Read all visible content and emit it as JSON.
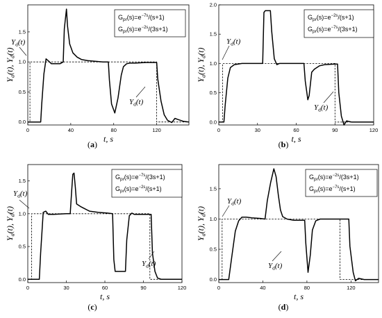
{
  "chart_data": [
    {
      "type": "line",
      "caption": "(a)",
      "xlabel": "t, s",
      "ylabel": "Ya(t), Yd(t)",
      "xlim": [
        0,
        150
      ],
      "ylim": [
        -0.05,
        1.95
      ],
      "xticks": [
        0,
        40,
        80,
        120
      ],
      "yticks": [
        0.0,
        0.5,
        1.0,
        1.5
      ],
      "grid": false,
      "legend_position": "top-right",
      "legend": [
        {
          "pre": "G",
          "sub": "pr",
          "mid": "(s)=e",
          "sup": "−7s",
          "post": "/(s+1)"
        },
        {
          "pre": "G",
          "sub": "pr",
          "mid": "(s)=e",
          "sup": "−2s",
          "post": "/(3s+1)"
        }
      ],
      "annotations": [
        {
          "text": "Y",
          "sub": "d",
          "tail": "(t)",
          "x": 2,
          "y": 1.2
        },
        {
          "text": "Y",
          "sub": "d",
          "tail": "(t)",
          "x": 106,
          "y": 0.27
        }
      ],
      "series": [
        {
          "style": "solid",
          "points": [
            [
              0,
              0
            ],
            [
              12,
              0
            ],
            [
              13,
              0.3
            ],
            [
              15,
              0.8
            ],
            [
              17,
              1.05
            ],
            [
              19,
              1.02
            ],
            [
              22,
              0.97
            ],
            [
              26,
              0.97
            ],
            [
              30,
              0.97
            ],
            [
              33,
              1.0
            ],
            [
              34,
              1.55
            ],
            [
              36,
              1.88
            ],
            [
              37,
              1.6
            ],
            [
              39,
              1.3
            ],
            [
              42,
              1.15
            ],
            [
              46,
              1.08
            ],
            [
              50,
              1.04
            ],
            [
              56,
              1.02
            ],
            [
              70,
              1.0
            ],
            [
              75,
              1.0
            ],
            [
              76,
              0.7
            ],
            [
              78,
              0.3
            ],
            [
              81,
              0.15
            ],
            [
              84,
              0.4
            ],
            [
              87,
              0.78
            ],
            [
              89,
              0.92
            ],
            [
              92,
              0.97
            ],
            [
              95,
              0.98
            ],
            [
              100,
              0.98
            ],
            [
              110,
              0.99
            ],
            [
              120,
              0.99
            ],
            [
              121,
              0.72
            ],
            [
              124,
              0.35
            ],
            [
              127,
              0.12
            ],
            [
              130,
              0.03
            ],
            [
              134,
              -0.01
            ],
            [
              137,
              0.06
            ],
            [
              140,
              0.04
            ],
            [
              145,
              0.01
            ],
            [
              150,
              0.0
            ]
          ]
        },
        {
          "style": "dashed",
          "points": [
            [
              0,
              0
            ],
            [
              2,
              0
            ],
            [
              2,
              1
            ],
            [
              120,
              1
            ],
            [
              120,
              0
            ],
            [
              150,
              0
            ]
          ]
        }
      ]
    },
    {
      "type": "line",
      "caption": "(b)",
      "xlabel": "t, s",
      "ylabel": "Ya(t), Yd(t)",
      "xlim": [
        0,
        120
      ],
      "ylim": [
        -0.05,
        2.0
      ],
      "xticks": [
        0,
        30,
        60,
        90,
        120
      ],
      "yticks": [
        0.0,
        0.5,
        1.0,
        1.5,
        2.0
      ],
      "grid": false,
      "legend_position": "top-right",
      "legend": [
        {
          "pre": "G",
          "sub": "pr",
          "mid": "(s)=e",
          "sup": "−2s",
          "post": "/(s+1)"
        },
        {
          "pre": "G",
          "sub": "pr",
          "mid": "(s)=e",
          "sup": "−7s",
          "post": "/(3s+1)"
        }
      ],
      "annotations": [
        {
          "text": "Y",
          "sub": "d",
          "tail": "(t)",
          "x": 3,
          "y": 1.22
        },
        {
          "text": "Y",
          "sub": "d",
          "tail": "(t)",
          "x": 80,
          "y": 0.4
        }
      ],
      "series": [
        {
          "style": "solid",
          "points": [
            [
              0,
              0
            ],
            [
              4,
              0
            ],
            [
              5,
              0.3
            ],
            [
              7,
              0.75
            ],
            [
              9,
              0.93
            ],
            [
              12,
              0.98
            ],
            [
              18,
              1.0
            ],
            [
              30,
              1.0
            ],
            [
              34,
              1.0
            ],
            [
              35,
              1.87
            ],
            [
              36,
              1.9
            ],
            [
              40,
              1.9
            ],
            [
              41,
              1.55
            ],
            [
              43,
              1.08
            ],
            [
              45,
              0.98
            ],
            [
              47,
              1.0
            ],
            [
              60,
              1.0
            ],
            [
              66,
              1.0
            ],
            [
              67,
              0.7
            ],
            [
              69,
              0.38
            ],
            [
              70,
              0.45
            ],
            [
              72,
              0.85
            ],
            [
              74,
              0.9
            ],
            [
              78,
              0.96
            ],
            [
              82,
              0.98
            ],
            [
              90,
              0.99
            ],
            [
              92,
              0.99
            ],
            [
              93,
              0.5
            ],
            [
              95,
              0.1
            ],
            [
              97,
              -0.05
            ],
            [
              99,
              0.02
            ],
            [
              103,
              0.0
            ],
            [
              120,
              0.0
            ]
          ]
        },
        {
          "style": "dashed",
          "points": [
            [
              0,
              0
            ],
            [
              3,
              0
            ],
            [
              3,
              1
            ],
            [
              90,
              1
            ],
            [
              90,
              0
            ],
            [
              120,
              0
            ]
          ]
        }
      ]
    },
    {
      "type": "line",
      "caption": "(c)",
      "xlabel": "t, s",
      "ylabel": "Ya(t), Yd(t)",
      "xlim": [
        0,
        120
      ],
      "ylim": [
        -0.05,
        1.75
      ],
      "xticks": [
        0,
        30,
        60,
        90,
        120
      ],
      "yticks": [
        0.0,
        0.5,
        1.0,
        1.5
      ],
      "grid": false,
      "legend_position": "top-right",
      "legend": [
        {
          "pre": "G",
          "sub": "pr",
          "mid": "(s)=e",
          "sup": "−7s",
          "post": "/(3s+1)"
        },
        {
          "pre": "G",
          "sub": "pr",
          "mid": "(s)=e",
          "sup": "−2s",
          "post": "/(s+1)"
        }
      ],
      "annotations": [
        {
          "text": "Y",
          "sub": "d",
          "tail": "(t)",
          "x": 3,
          "y": 1.22
        },
        {
          "text": "Y",
          "sub": "d",
          "tail": "(t)",
          "x": 90,
          "y": 0.3
        }
      ],
      "series": [
        {
          "style": "solid",
          "points": [
            [
              0,
              0
            ],
            [
              9,
              0
            ],
            [
              10,
              0.4
            ],
            [
              12,
              1.02
            ],
            [
              14,
              1.04
            ],
            [
              16,
              0.99
            ],
            [
              20,
              0.99
            ],
            [
              30,
              1.0
            ],
            [
              33,
              1.0
            ],
            [
              34,
              1.3
            ],
            [
              35,
              1.6
            ],
            [
              36,
              1.62
            ],
            [
              37,
              1.4
            ],
            [
              38,
              1.15
            ],
            [
              41,
              1.11
            ],
            [
              44,
              1.08
            ],
            [
              48,
              1.04
            ],
            [
              55,
              1.02
            ],
            [
              62,
              1.01
            ],
            [
              66,
              1.0
            ],
            [
              67,
              0.3
            ],
            [
              68,
              0.12
            ],
            [
              73,
              0.12
            ],
            [
              76,
              0.12
            ],
            [
              77,
              0.6
            ],
            [
              79,
              0.97
            ],
            [
              81,
              1.01
            ],
            [
              83,
              0.99
            ],
            [
              88,
              0.99
            ],
            [
              96,
              0.99
            ],
            [
              97,
              0.4
            ],
            [
              99,
              0.12
            ],
            [
              101,
              0.02
            ],
            [
              104,
              0.0
            ],
            [
              120,
              0.0
            ]
          ]
        },
        {
          "style": "dashed",
          "points": [
            [
              0,
              0
            ],
            [
              3,
              0
            ],
            [
              3,
              1
            ],
            [
              95,
              1
            ],
            [
              95,
              0
            ],
            [
              120,
              0
            ]
          ]
        }
      ]
    },
    {
      "type": "line",
      "caption": "(d)",
      "xlabel": "t, s",
      "ylabel": "Ya(t), Yd(t)",
      "xlim": [
        0,
        145
      ],
      "ylim": [
        -0.05,
        1.9
      ],
      "xticks": [
        0,
        40,
        80,
        120
      ],
      "yticks": [
        0.0,
        0.5,
        1.0,
        1.5
      ],
      "grid": false,
      "legend_position": "top-right",
      "legend": [
        {
          "pre": "G",
          "sub": "pr",
          "mid": "(s)=e",
          "sup": "−2s",
          "post": "/(3s+1)"
        },
        {
          "pre": "G",
          "sub": "pr",
          "mid": "(s)=e",
          "sup": "−7s",
          "post": "/(s+1)"
        }
      ],
      "annotations": [
        {
          "text": "Y",
          "sub": "d",
          "tail": "(t)",
          "x": 3,
          "y": 1.2
        },
        {
          "text": "Y",
          "sub": "d",
          "tail": "(t)",
          "x": 100,
          "y": 0.28
        }
      ],
      "series": [
        {
          "style": "solid",
          "points": [
            [
              0,
              0
            ],
            [
              9,
              0
            ],
            [
              12,
              0.4
            ],
            [
              15,
              0.8
            ],
            [
              18,
              0.97
            ],
            [
              21,
              1.03
            ],
            [
              25,
              1.03
            ],
            [
              30,
              1.02
            ],
            [
              38,
              1.01
            ],
            [
              42,
              1.0
            ],
            [
              44,
              1.3
            ],
            [
              47,
              1.6
            ],
            [
              50,
              1.83
            ],
            [
              52,
              1.7
            ],
            [
              54,
              1.4
            ],
            [
              56,
              1.15
            ],
            [
              58,
              1.04
            ],
            [
              62,
              1.0
            ],
            [
              68,
              0.98
            ],
            [
              75,
              0.98
            ],
            [
              78,
              0.98
            ],
            [
              79,
              0.6
            ],
            [
              81,
              0.12
            ],
            [
              83,
              0.4
            ],
            [
              85,
              0.82
            ],
            [
              88,
              0.97
            ],
            [
              92,
              1.0
            ],
            [
              100,
              1.0
            ],
            [
              110,
              1.0
            ],
            [
              118,
              1.0
            ],
            [
              119,
              0.55
            ],
            [
              122,
              0.12
            ],
            [
              124,
              -0.02
            ],
            [
              127,
              0.02
            ],
            [
              132,
              0.0
            ],
            [
              145,
              0.0
            ]
          ]
        },
        {
          "style": "dashed",
          "points": [
            [
              0,
              0
            ],
            [
              3,
              0
            ],
            [
              3,
              1
            ],
            [
              110,
              1
            ],
            [
              110,
              0
            ],
            [
              145,
              0
            ]
          ]
        }
      ]
    }
  ]
}
